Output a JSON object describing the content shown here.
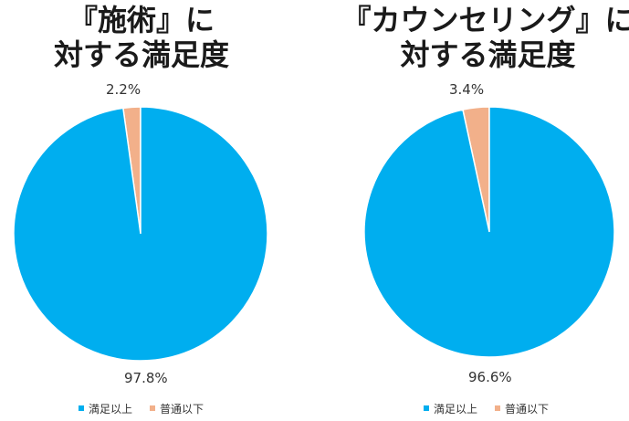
{
  "colors": {
    "satisfied": "#00AEEF",
    "neutral_or_below": "#F2B08A"
  },
  "chart_data": [
    {
      "type": "pie",
      "title_line1": "『施術』に",
      "title_line2": "対する満足度",
      "categories": [
        "満足以上",
        "普通以下"
      ],
      "values": [
        97.8,
        2.2
      ],
      "data_labels": [
        "97.8%",
        "2.2%"
      ],
      "legend": [
        "満足以上",
        "普通以下"
      ],
      "legend_position": "bottom"
    },
    {
      "type": "pie",
      "title_line1": "『カウンセリング』に",
      "title_line2": "対する満足度",
      "categories": [
        "満足以上",
        "普通以下"
      ],
      "values": [
        96.6,
        3.4
      ],
      "data_labels": [
        "96.6%",
        "3.4%"
      ],
      "legend": [
        "満足以上",
        "普通以下"
      ],
      "legend_position": "bottom"
    }
  ]
}
